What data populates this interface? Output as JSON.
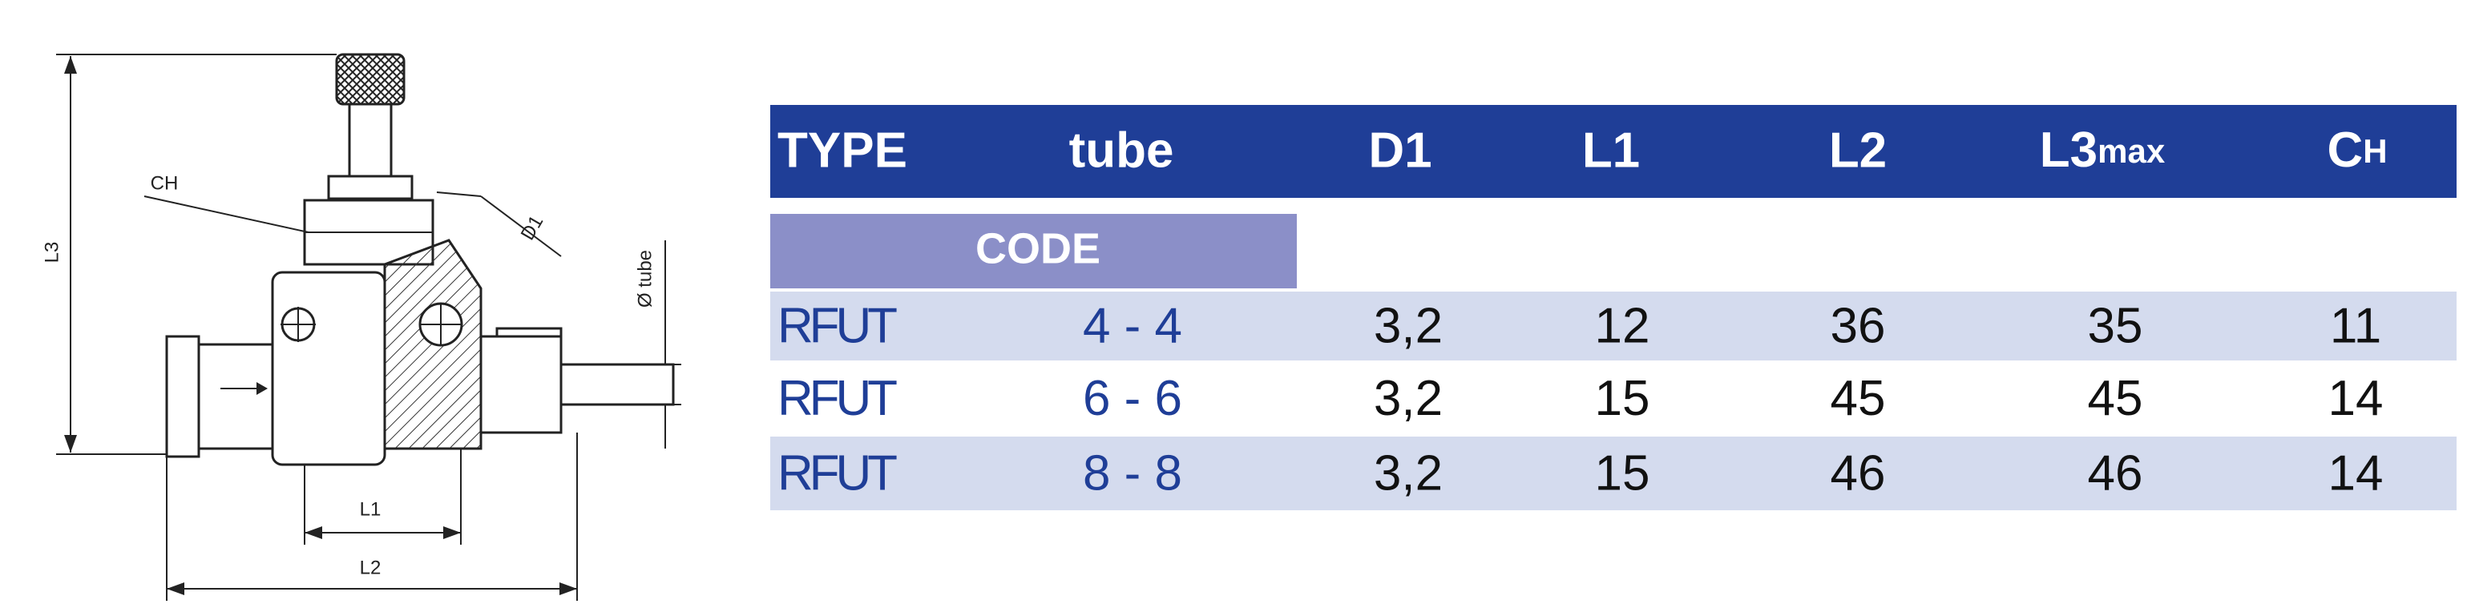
{
  "drawing": {
    "labels": {
      "ch": "CH",
      "l3": "L3",
      "d1": "D1",
      "tube": "Ø tube",
      "l1": "L1",
      "l2": "L2"
    }
  },
  "table": {
    "header": [
      "TYPE",
      "tube",
      "D1",
      "L1",
      "L2",
      {
        "main": "L3",
        "sub": "max"
      },
      {
        "main": "C",
        "sub": "H"
      }
    ],
    "code_label": "CODE",
    "rows": [
      [
        "RFUT",
        "4 - 4",
        "3,2",
        "12",
        "36",
        "35",
        "11"
      ],
      [
        "RFUT",
        "6 - 6",
        "3,2",
        "15",
        "45",
        "45",
        "14"
      ],
      [
        "RFUT",
        "8 - 8",
        "3,2",
        "15",
        "46",
        "46",
        "14"
      ]
    ]
  }
}
